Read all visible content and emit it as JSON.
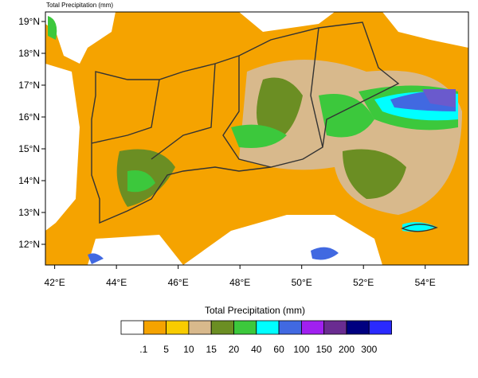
{
  "title": "Total Precipitation   (mm)",
  "map": {
    "lon_range": [
      41.7,
      55.4
    ],
    "lat_range": [
      11.35,
      19.3
    ],
    "lat_ticks": [
      {
        "value": 12,
        "label": "12°N"
      },
      {
        "value": 13,
        "label": "13°N"
      },
      {
        "value": 14,
        "label": "14°N"
      },
      {
        "value": 15,
        "label": "15°N"
      },
      {
        "value": 16,
        "label": "16°N"
      },
      {
        "value": 17,
        "label": "17°N"
      },
      {
        "value": 18,
        "label": "18°N"
      },
      {
        "value": 19,
        "label": "19°N"
      }
    ],
    "lon_ticks": [
      {
        "value": 42,
        "label": "42°E"
      },
      {
        "value": 44,
        "label": "44°E"
      },
      {
        "value": 46,
        "label": "46°E"
      },
      {
        "value": 48,
        "label": "48°E"
      },
      {
        "value": 50,
        "label": "50°E"
      },
      {
        "value": 52,
        "label": "52°E"
      },
      {
        "value": 54,
        "label": "54°E"
      }
    ]
  },
  "colorbar": {
    "title": "Total Precipitation  (mm)",
    "levels": [
      {
        "value": 0.1,
        "label": ".1"
      },
      5,
      10,
      15,
      20,
      40,
      60,
      100,
      150,
      200,
      300
    ],
    "colors": [
      "#ffffff",
      "#f5a300",
      "#f8cc00",
      "#d8b98c",
      "#6b8e23",
      "#3cc83c",
      "#00ffff",
      "#4169e1",
      "#a020f0",
      "#6a2c91",
      "#000080",
      "#2a2aff"
    ]
  }
}
